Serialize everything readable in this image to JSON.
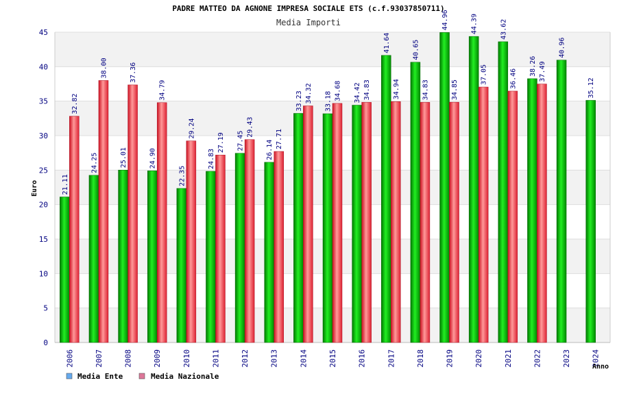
{
  "chart_data": {
    "type": "bar",
    "title": "PADRE MATTEO DA AGNONE IMPRESA SOCIALE ETS (c.f.93037850711)",
    "subtitle": "Media Importi",
    "xlabel": "Anno",
    "ylabel": "Euro",
    "ylim": [
      0,
      45
    ],
    "yticks": [
      0,
      5,
      10,
      15,
      20,
      25,
      30,
      35,
      40,
      45
    ],
    "grid": true,
    "legend_position": "bottom-left",
    "categories": [
      "2006",
      "2007",
      "2008",
      "2009",
      "2010",
      "2011",
      "2012",
      "2013",
      "2014",
      "2015",
      "2016",
      "2017",
      "2018",
      "2019",
      "2020",
      "2021",
      "2022",
      "2023",
      "2024"
    ],
    "series": [
      {
        "name": "Media Ente",
        "color": "#00bb00",
        "legend_color": "#66aaee",
        "values": [
          21.11,
          24.25,
          25.01,
          24.9,
          22.35,
          24.83,
          27.45,
          26.14,
          33.23,
          33.18,
          34.42,
          41.64,
          40.65,
          44.96,
          44.39,
          43.62,
          38.26,
          40.96,
          35.12
        ],
        "labels": [
          "21.11",
          "24.25",
          "25.01",
          "24.90",
          "22.35",
          "24.83",
          "27.45",
          "26.14",
          "33.23",
          "33.18",
          "34.42",
          "41.64",
          "40.65",
          "44.96",
          "44.39",
          "43.62",
          "38.26",
          "40.96",
          "35.12"
        ]
      },
      {
        "name": "Media Nazionale",
        "color": "#ee3344",
        "legend_color": "#dd7799",
        "values": [
          32.82,
          38.0,
          37.36,
          34.79,
          29.24,
          27.19,
          29.43,
          27.71,
          34.32,
          34.68,
          34.83,
          34.94,
          34.83,
          34.85,
          37.05,
          36.46,
          37.49,
          null,
          null
        ],
        "labels": [
          "32.82",
          "38.00",
          "37.36",
          "34.79",
          "29.24",
          "27.19",
          "29.43",
          "27.71",
          "34.32",
          "34.68",
          "34.83",
          "34.94",
          "34.83",
          "34.85",
          "37.05",
          "36.46",
          "37.49",
          null,
          null
        ]
      }
    ]
  }
}
